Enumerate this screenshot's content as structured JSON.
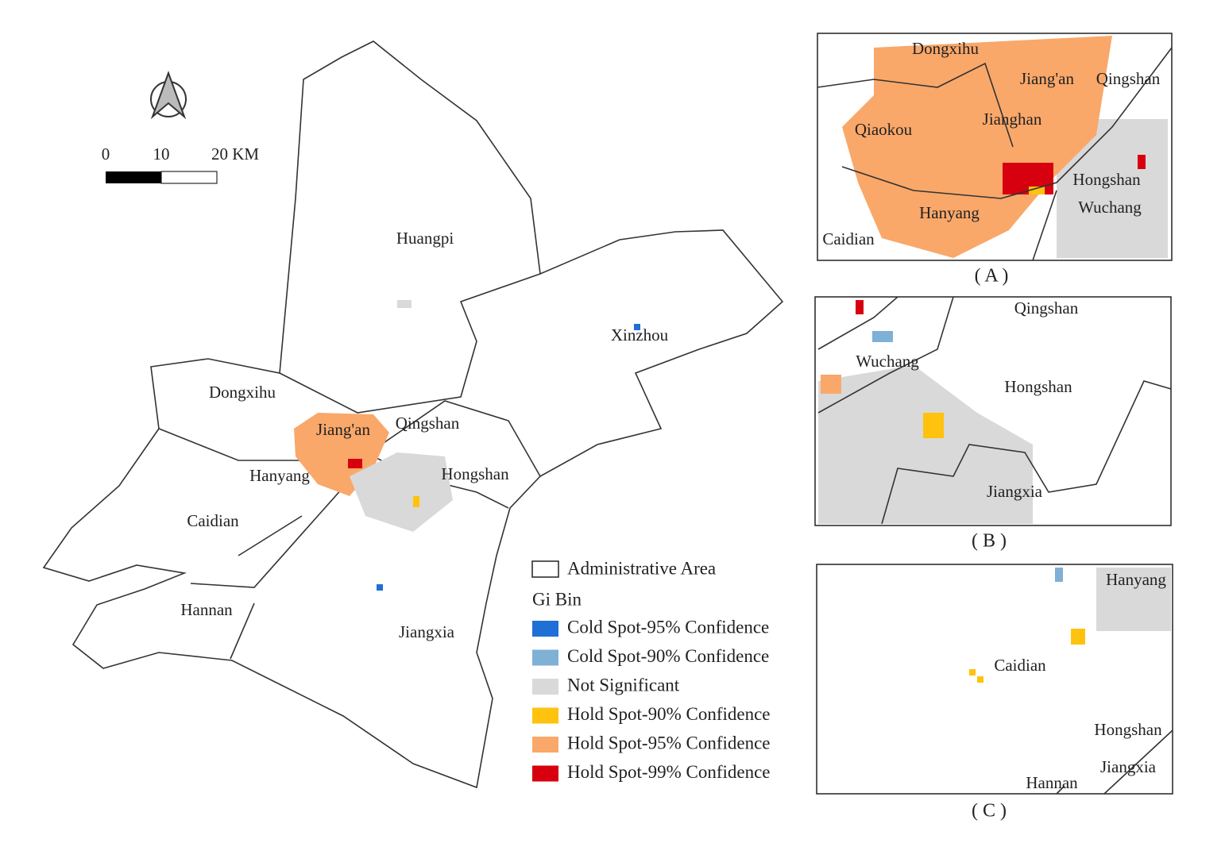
{
  "main_map": {
    "districts": [
      {
        "label": "Huangpi"
      },
      {
        "label": "Xinzhou"
      },
      {
        "label": "Dongxihu"
      },
      {
        "label": "Jiang'an"
      },
      {
        "label": "Qingshan"
      },
      {
        "label": "Hanyang"
      },
      {
        "label": "Hongshan"
      },
      {
        "label": "Caidian"
      },
      {
        "label": "Hannan"
      },
      {
        "label": "Jiangxia"
      }
    ],
    "scale_bar": {
      "ticks": [
        "0",
        "10",
        "20 KM"
      ]
    }
  },
  "legend": {
    "boundary": "Administrative Area",
    "title": "Gi Bin",
    "items": [
      {
        "label": "Cold Spot-95% Confidence",
        "color": "#1f6fd6"
      },
      {
        "label": "Cold Spot-90% Confidence",
        "color": "#7fb0d6"
      },
      {
        "label": "Not Significant",
        "color": "#d9d9d9"
      },
      {
        "label": "Hold Spot-90% Confidence",
        "color": "#ffc20e"
      },
      {
        "label": "Hold Spot-95% Confidence",
        "color": "#f9a86a"
      },
      {
        "label": "Hold Spot-99% Confidence",
        "color": "#d7000f"
      }
    ]
  },
  "insets": [
    {
      "caption": "( A )",
      "labels": [
        "Dongxihu",
        "Jiang'an",
        "Qingshan",
        "Qiaokou",
        "Jianghan",
        "Hongshan",
        "Hanyang",
        "Wuchang",
        "Caidian"
      ]
    },
    {
      "caption": "( B )",
      "labels": [
        "Qingshan",
        "Wuchang",
        "Hongshan",
        "Jiangxia"
      ]
    },
    {
      "caption": "( C )",
      "labels": [
        "Hanyang",
        "Caidian",
        "Hongshan",
        "Jiangxia",
        "Hannan"
      ]
    }
  ]
}
